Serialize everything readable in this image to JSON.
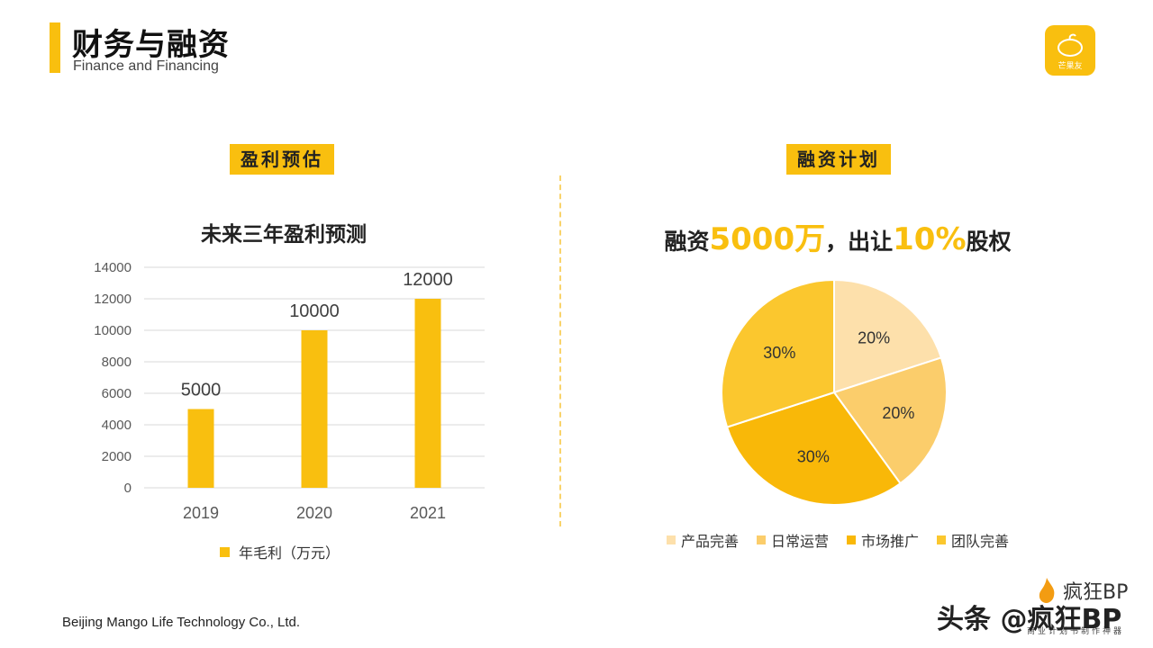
{
  "header": {
    "title": "财务与融资",
    "subtitle": "Finance and Financing",
    "logo_text": "芒果友"
  },
  "left_section": {
    "label": "盈利预估",
    "chart_title": "未来三年盈利预测",
    "legend": "年毛利（万元）"
  },
  "right_section": {
    "label": "融资计划",
    "headline_part1": "融资",
    "headline_amount": "5000万",
    "headline_part2": "，出让",
    "headline_percent": "10%",
    "headline_part3": "股权"
  },
  "chart_data": [
    {
      "type": "bar",
      "title": "未来三年盈利预测",
      "categories": [
        "2019",
        "2020",
        "2021"
      ],
      "series": [
        {
          "name": "年毛利（万元）",
          "values": [
            5000,
            10000,
            12000
          ]
        }
      ],
      "ylim": [
        0,
        14000
      ],
      "yticks": [
        0,
        2000,
        4000,
        6000,
        8000,
        10000,
        12000,
        14000
      ],
      "color": "#f9bf0f"
    },
    {
      "type": "pie",
      "labels": [
        "产品完善",
        "日常运营",
        "市场推广",
        "团队完善"
      ],
      "values": [
        20,
        20,
        30,
        30
      ],
      "value_labels": [
        "20%",
        "20%",
        "30%",
        "30%"
      ],
      "colors": [
        "#fde0ab",
        "#fbcd6b",
        "#f9b808",
        "#fbc72e"
      ]
    }
  ],
  "footer": {
    "company": "Beijing Mango Life Technology  Co., Ltd."
  },
  "watermark": {
    "brand": "疯狂BP",
    "sub": "商业计划书制作神器",
    "toutiao": "头条 @疯狂BP"
  }
}
